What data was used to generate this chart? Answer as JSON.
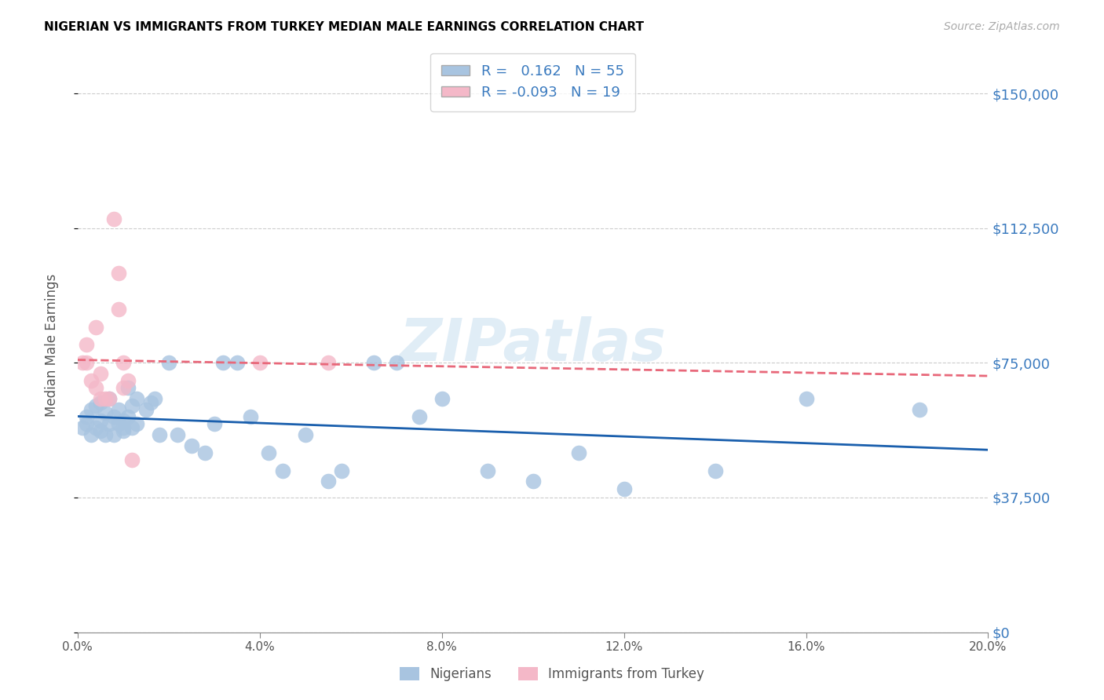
{
  "title": "NIGERIAN VS IMMIGRANTS FROM TURKEY MEDIAN MALE EARNINGS CORRELATION CHART",
  "source": "Source: ZipAtlas.com",
  "ylabel": "Median Male Earnings",
  "ytick_labels": [
    "$0",
    "$37,500",
    "$75,000",
    "$112,500",
    "$150,000"
  ],
  "ytick_values": [
    0,
    37500,
    75000,
    112500,
    150000
  ],
  "ymin": 0,
  "ymax": 160000,
  "xmin": 0.0,
  "xmax": 0.2,
  "legend_r_blue": "0.162",
  "legend_n_blue": "55",
  "legend_r_pink": "-0.093",
  "legend_n_pink": "19",
  "watermark": "ZIPatlas",
  "blue_color": "#a8c4e0",
  "pink_color": "#f4b8c8",
  "trendline_blue": "#1a5fad",
  "trendline_pink": "#e8687a",
  "blue_x": [
    0.001,
    0.002,
    0.002,
    0.003,
    0.003,
    0.004,
    0.004,
    0.005,
    0.005,
    0.005,
    0.006,
    0.006,
    0.007,
    0.007,
    0.008,
    0.008,
    0.009,
    0.009,
    0.01,
    0.01,
    0.01,
    0.011,
    0.011,
    0.012,
    0.012,
    0.013,
    0.013,
    0.015,
    0.016,
    0.017,
    0.018,
    0.02,
    0.022,
    0.025,
    0.028,
    0.03,
    0.032,
    0.035,
    0.038,
    0.042,
    0.045,
    0.05,
    0.055,
    0.058,
    0.065,
    0.07,
    0.075,
    0.08,
    0.09,
    0.1,
    0.11,
    0.12,
    0.14,
    0.16,
    0.185
  ],
  "blue_y": [
    57000,
    60000,
    58000,
    62000,
    55000,
    57000,
    63000,
    56000,
    59000,
    64000,
    55000,
    61000,
    58000,
    65000,
    60000,
    55000,
    58000,
    62000,
    56000,
    59000,
    57000,
    68000,
    60000,
    63000,
    57000,
    65000,
    58000,
    62000,
    64000,
    65000,
    55000,
    75000,
    55000,
    52000,
    50000,
    58000,
    75000,
    75000,
    60000,
    50000,
    45000,
    55000,
    42000,
    45000,
    75000,
    75000,
    60000,
    65000,
    45000,
    42000,
    50000,
    40000,
    45000,
    65000,
    62000
  ],
  "pink_x": [
    0.001,
    0.002,
    0.002,
    0.003,
    0.004,
    0.004,
    0.005,
    0.005,
    0.006,
    0.007,
    0.008,
    0.009,
    0.009,
    0.01,
    0.01,
    0.011,
    0.012,
    0.04,
    0.055
  ],
  "pink_y": [
    75000,
    75000,
    80000,
    70000,
    68000,
    85000,
    72000,
    65000,
    65000,
    65000,
    115000,
    100000,
    90000,
    75000,
    68000,
    70000,
    48000,
    75000,
    75000
  ]
}
